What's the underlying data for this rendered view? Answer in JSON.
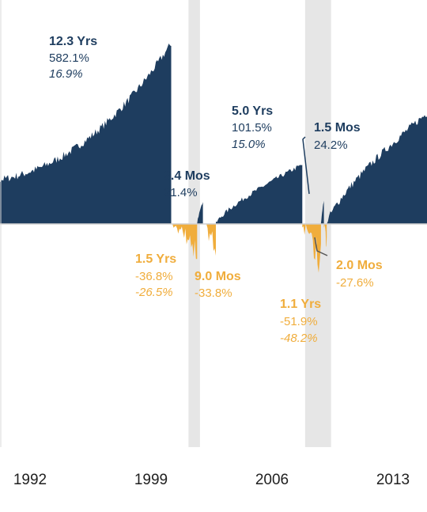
{
  "chart_data": {
    "type": "area",
    "title": "",
    "xlabel": "",
    "ylabel": "",
    "x_ticks": [
      "1992",
      "1999",
      "2006",
      "2013"
    ],
    "grid": false,
    "colors": {
      "bull": "#1e3d5f",
      "bear": "#f0ad3c",
      "recession": "#e6e6e6",
      "axis": "#cfcfcf"
    },
    "recession_shading": [
      {
        "start": "2001-03",
        "end": "2001-11"
      },
      {
        "start": "2007-12",
        "end": "2009-06"
      }
    ],
    "markets": [
      {
        "kind": "bull",
        "start": "1987-12",
        "end": "2000-03",
        "duration": "12.3 Yrs",
        "cumulative_return": "582.1%",
        "annualized_return": "16.9%"
      },
      {
        "kind": "bear",
        "start": "2000-03",
        "end": "2001-09",
        "duration": "1.5 Yrs",
        "cumulative_return": "-36.8%",
        "annualized_return": "-26.5%"
      },
      {
        "kind": "bull",
        "start": "2001-09",
        "end": "2002-01",
        "duration": "3.4 Mos",
        "cumulative_return": "21.4%"
      },
      {
        "kind": "bear",
        "start": "2002-01",
        "end": "2002-10",
        "duration": "9.0 Mos",
        "cumulative_return": "-33.8%"
      },
      {
        "kind": "bull",
        "start": "2002-10",
        "end": "2007-10",
        "duration": "5.0 Yrs",
        "cumulative_return": "101.5%",
        "annualized_return": "15.0%"
      },
      {
        "kind": "bear",
        "start": "2007-10",
        "end": "2008-11",
        "duration": "1.1 Yrs",
        "cumulative_return": "-51.9%",
        "annualized_return": "-48.2%"
      },
      {
        "kind": "bull",
        "start": "2008-11",
        "end": "2009-01",
        "duration": "1.5 Mos",
        "cumulative_return": "24.2%"
      },
      {
        "kind": "bear",
        "start": "2009-01",
        "end": "2009-03",
        "duration": "2.0 Mos",
        "cumulative_return": "-27.6%"
      },
      {
        "kind": "bull",
        "start": "2009-03",
        "end": "2015-03",
        "duration": "",
        "cumulative_return": ""
      }
    ]
  }
}
